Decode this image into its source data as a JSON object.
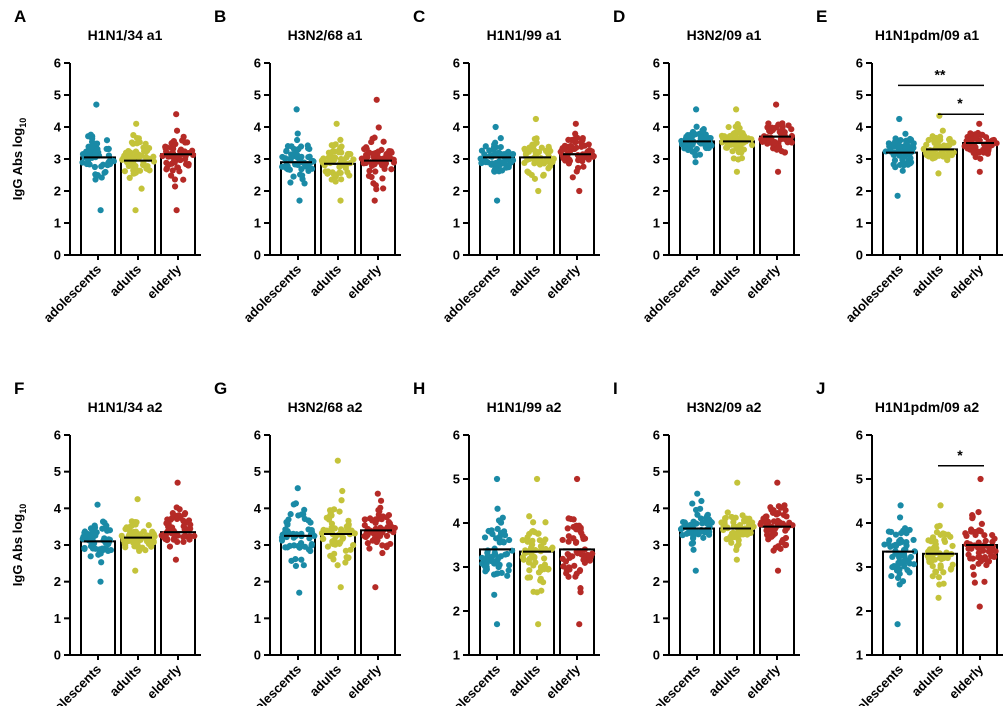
{
  "figure": {
    "colors": {
      "adolescents": "#1a8aa6",
      "adults": "#c4c33a",
      "elderly": "#b52a26"
    },
    "ylabel_main": "IgG Abs log",
    "ylabel_sub": "10"
  },
  "chart_data": [
    {
      "letter": "A",
      "type": "scatter",
      "title": "H1N1/34 a1",
      "categories": [
        "adolescents",
        "adults",
        "elderly"
      ],
      "ylim": [
        0,
        6
      ],
      "yticks": [
        0,
        1,
        2,
        3,
        4,
        5,
        6
      ],
      "series": [
        {
          "category": "adolescents",
          "mean": 3.05,
          "min": 1.4,
          "max": 4.7
        },
        {
          "category": "adults",
          "mean": 2.95,
          "min": 1.4,
          "max": 4.1
        },
        {
          "category": "elderly",
          "mean": 3.15,
          "min": 1.4,
          "max": 4.4
        }
      ],
      "significance": []
    },
    {
      "letter": "B",
      "type": "scatter",
      "title": "H3N2/68 a1",
      "categories": [
        "adolescents",
        "adults",
        "elderly"
      ],
      "ylim": [
        0,
        6
      ],
      "yticks": [
        0,
        1,
        2,
        3,
        4,
        5,
        6
      ],
      "series": [
        {
          "category": "adolescents",
          "mean": 2.9,
          "min": 1.7,
          "max": 4.55
        },
        {
          "category": "adults",
          "mean": 2.85,
          "min": 1.7,
          "max": 4.1
        },
        {
          "category": "elderly",
          "mean": 2.95,
          "min": 1.7,
          "max": 4.85
        }
      ],
      "significance": []
    },
    {
      "letter": "C",
      "type": "scatter",
      "title": "H1N1/99 a1",
      "categories": [
        "adolescents",
        "adults",
        "elderly"
      ],
      "ylim": [
        0,
        6
      ],
      "yticks": [
        0,
        1,
        2,
        3,
        4,
        5,
        6
      ],
      "series": [
        {
          "category": "adolescents",
          "mean": 3.05,
          "min": 1.7,
          "max": 4.0
        },
        {
          "category": "adults",
          "mean": 3.05,
          "min": 2.0,
          "max": 4.25
        },
        {
          "category": "elderly",
          "mean": 3.15,
          "min": 2.0,
          "max": 4.1
        }
      ],
      "significance": []
    },
    {
      "letter": "D",
      "type": "scatter",
      "title": "H3N2/09 a1",
      "categories": [
        "adolescents",
        "adults",
        "elderly"
      ],
      "ylim": [
        0,
        6
      ],
      "yticks": [
        0,
        1,
        2,
        3,
        4,
        5,
        6
      ],
      "series": [
        {
          "category": "adolescents",
          "mean": 3.55,
          "min": 2.9,
          "max": 4.55
        },
        {
          "category": "adults",
          "mean": 3.55,
          "min": 2.6,
          "max": 4.55
        },
        {
          "category": "elderly",
          "mean": 3.7,
          "min": 2.6,
          "max": 4.7
        }
      ],
      "significance": []
    },
    {
      "letter": "E",
      "type": "scatter",
      "title": "H1N1pdm/09 a1",
      "categories": [
        "adolescents",
        "adults",
        "elderly"
      ],
      "ylim": [
        0,
        6
      ],
      "yticks": [
        0,
        1,
        2,
        3,
        4,
        5,
        6
      ],
      "series": [
        {
          "category": "adolescents",
          "mean": 3.2,
          "min": 1.85,
          "max": 4.25
        },
        {
          "category": "adults",
          "mean": 3.3,
          "min": 2.55,
          "max": 4.35
        },
        {
          "category": "elderly",
          "mean": 3.5,
          "min": 2.6,
          "max": 4.1
        }
      ],
      "significance": [
        {
          "from": 0,
          "to": 2,
          "label": "**",
          "y": 5.3
        },
        {
          "from": 1,
          "to": 2,
          "label": "*",
          "y": 4.4
        }
      ]
    },
    {
      "letter": "F",
      "type": "scatter",
      "title": "H1N1/34 a2",
      "categories": [
        "adolescents",
        "adults",
        "elderly"
      ],
      "ylim": [
        0,
        6
      ],
      "yticks": [
        0,
        1,
        2,
        3,
        4,
        5,
        6
      ],
      "series": [
        {
          "category": "adolescents",
          "mean": 3.1,
          "min": 2.0,
          "max": 4.1
        },
        {
          "category": "adults",
          "mean": 3.2,
          "min": 2.3,
          "max": 4.25
        },
        {
          "category": "elderly",
          "mean": 3.35,
          "min": 2.6,
          "max": 4.7
        }
      ],
      "significance": []
    },
    {
      "letter": "G",
      "type": "scatter",
      "title": "H3N2/68 a2",
      "categories": [
        "adolescents",
        "adults",
        "elderly"
      ],
      "ylim": [
        0,
        6
      ],
      "yticks": [
        0,
        1,
        2,
        3,
        4,
        5,
        6
      ],
      "series": [
        {
          "category": "adolescents",
          "mean": 3.25,
          "min": 1.7,
          "max": 4.55
        },
        {
          "category": "adults",
          "mean": 3.3,
          "min": 1.85,
          "max": 5.3
        },
        {
          "category": "elderly",
          "mean": 3.4,
          "min": 1.85,
          "max": 4.4
        }
      ],
      "significance": []
    },
    {
      "letter": "H",
      "type": "scatter",
      "title": "H1N1/99 a2",
      "categories": [
        "adolescents",
        "adults",
        "elderly"
      ],
      "ylim": [
        1,
        6
      ],
      "yticks": [
        1,
        2,
        3,
        4,
        5,
        6
      ],
      "series": [
        {
          "category": "adolescents",
          "mean": 3.4,
          "min": 1.7,
          "max": 5.0
        },
        {
          "category": "adults",
          "mean": 3.35,
          "min": 1.7,
          "max": 5.0
        },
        {
          "category": "elderly",
          "mean": 3.4,
          "min": 1.7,
          "max": 5.0
        }
      ],
      "significance": []
    },
    {
      "letter": "I",
      "type": "scatter",
      "title": "H3N2/09 a2",
      "categories": [
        "adolescents",
        "adults",
        "elderly"
      ],
      "ylim": [
        0,
        6
      ],
      "yticks": [
        0,
        1,
        2,
        3,
        4,
        5,
        6
      ],
      "series": [
        {
          "category": "adolescents",
          "mean": 3.45,
          "min": 2.3,
          "max": 4.4
        },
        {
          "category": "adults",
          "mean": 3.45,
          "min": 2.6,
          "max": 4.7
        },
        {
          "category": "elderly",
          "mean": 3.5,
          "min": 2.3,
          "max": 4.7
        }
      ],
      "significance": []
    },
    {
      "letter": "J",
      "type": "scatter",
      "title": "H1N1pdm/09 a2",
      "categories": [
        "adolescents",
        "adults",
        "elderly"
      ],
      "ylim": [
        1,
        6
      ],
      "yticks": [
        1,
        2,
        3,
        4,
        5,
        6
      ],
      "series": [
        {
          "category": "adolescents",
          "mean": 3.35,
          "min": 1.7,
          "max": 4.4
        },
        {
          "category": "adults",
          "mean": 3.3,
          "min": 2.3,
          "max": 4.4
        },
        {
          "category": "elderly",
          "mean": 3.5,
          "min": 2.1,
          "max": 5.0
        }
      ],
      "significance": [
        {
          "from": 1,
          "to": 2,
          "label": "*",
          "y": 5.3
        }
      ]
    }
  ]
}
